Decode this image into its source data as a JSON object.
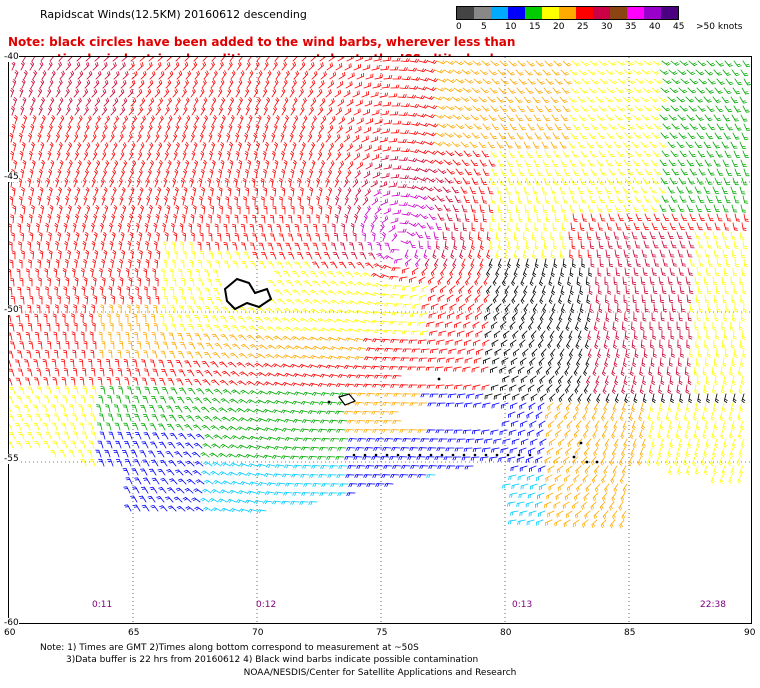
{
  "header": {
    "title": "Rapidscat Winds(12.5KM) 20160612 descending"
  },
  "note": {
    "line1": "Note: black circles have been added to the wind barbs, wherever less than",
    "line2": "optimal wind retrieval conditions are met due to the ISS altitude changes."
  },
  "legend": {
    "ticks": [
      "0",
      "5",
      "10",
      "15",
      "20",
      "25",
      "30",
      "35",
      "40",
      "45",
      ">50 knots"
    ],
    "colors": [
      "#444444",
      "#888888",
      "#00aaff",
      "#0000ff",
      "#00cc00",
      "#ffff00",
      "#ffaa00",
      "#ff0000",
      "#cc0044",
      "#8b4513",
      "#ff00ff",
      "#9900cc",
      "#4b0082"
    ]
  },
  "map": {
    "y_labels": [
      "-40",
      "-45",
      "-50",
      "-55",
      "-60"
    ],
    "x_labels": [
      "60",
      "65",
      "70",
      "75",
      "80",
      "85",
      "90"
    ],
    "time_labels": [
      "0:11",
      "0:12",
      "0:13",
      "22:38"
    ],
    "colors": {
      "calm": "#000000",
      "light": "#00ccff",
      "moderate": "#0000ff",
      "fresh": "#00aa00",
      "strong": "#ffff00",
      "gale": "#ffaa00",
      "storm": "#ff0000",
      "severe": "#cc0033",
      "extreme": "#cc00cc"
    }
  },
  "footer": {
    "line1": "Note: 1) Times are GMT 2)Times along bottom correspond to measurement at ~50S",
    "line2": "3)Data buffer is 22 hrs from 20160612 4) Black wind barbs indicate possible contamination",
    "credit": "NOAA/NESDIS/Center for Satellite Applications and Research"
  }
}
